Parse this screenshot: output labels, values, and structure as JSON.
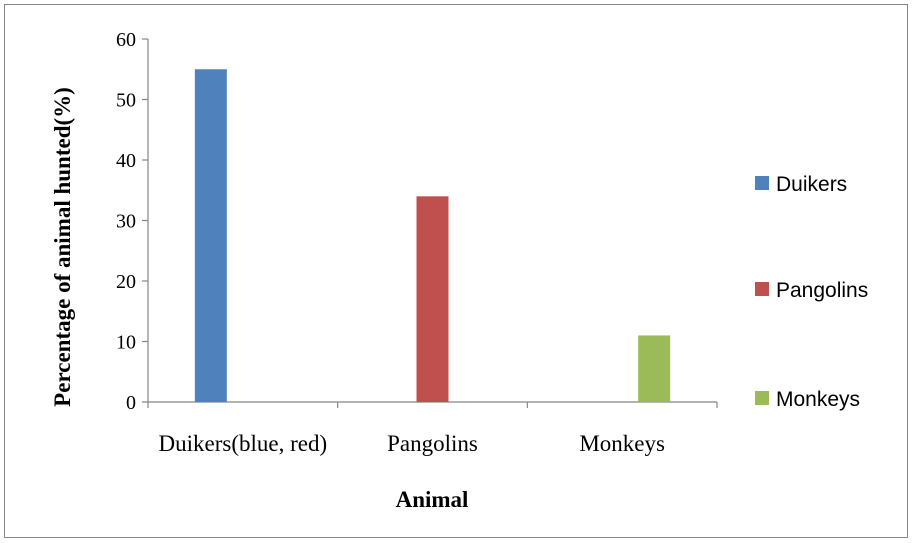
{
  "chart_data": {
    "type": "bar",
    "xlabel": "Animal",
    "ylabel": "Percentage of animal hunted(%)",
    "ylim": [
      0,
      60
    ],
    "yticks": [
      0,
      10,
      20,
      30,
      40,
      50,
      60
    ],
    "categories": [
      "Duikers(blue, red)",
      "Pangolins",
      "Monkeys"
    ],
    "series": [
      {
        "name": "Duikers",
        "color": "#4F81BD",
        "values": [
          55,
          0,
          0
        ]
      },
      {
        "name": "Pangolins",
        "color": "#C0504D",
        "values": [
          0,
          34,
          0
        ]
      },
      {
        "name": "Monkeys",
        "color": "#9BBB59",
        "values": [
          0,
          0,
          11
        ]
      }
    ],
    "grid": false,
    "legend_position": "right"
  }
}
